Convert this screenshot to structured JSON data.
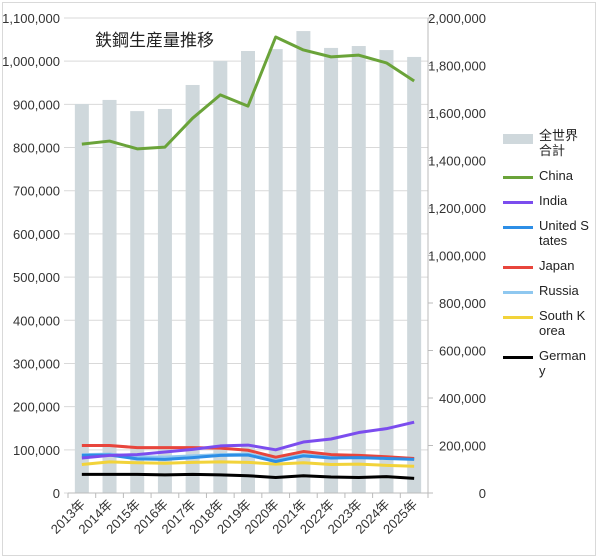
{
  "chart_data": {
    "type": "bar+line",
    "title": "鉄鋼生産量推移",
    "categories": [
      "2013年",
      "2014年",
      "2015年",
      "2016年",
      "2017年",
      "2018年",
      "2019年",
      "2020年",
      "2021年",
      "2022年",
      "2023年",
      "2024年",
      "2025年"
    ],
    "left_axis": {
      "ylim": [
        0,
        1100000
      ],
      "ticks": [
        "0",
        "100,000",
        "200,000",
        "300,000",
        "400,000",
        "500,000",
        "600,000",
        "700,000",
        "800,000",
        "900,000",
        "1,000,000",
        "1,100,000"
      ]
    },
    "right_axis": {
      "ylim": [
        0,
        2000000
      ],
      "ticks": [
        "0",
        "200,000",
        "400,000",
        "600,000",
        "800,000",
        "1,000,000",
        "1,200,000",
        "1,400,000",
        "1,600,000",
        "1,800,000",
        "2,000,000"
      ]
    },
    "grid": true,
    "legend_position": "right",
    "bar_series": {
      "name": "全世界合計",
      "axis": "right",
      "color": "#cfd8dc",
      "values": [
        1638000,
        1655000,
        1608000,
        1617000,
        1718000,
        1819000,
        1861000,
        1869000,
        1945000,
        1874000,
        1882000,
        1865000,
        1836000
      ]
    },
    "series": [
      {
        "name": "China",
        "color": "#6aa339",
        "values": [
          808000,
          815000,
          797000,
          801000,
          868000,
          922000,
          896000,
          1056000,
          1026000,
          1010000,
          1014000,
          996000,
          954000
        ]
      },
      {
        "name": "India",
        "color": "#7b4dee",
        "values": [
          81000,
          87000,
          89000,
          95000,
          101000,
          109000,
          111000,
          100000,
          118000,
          125000,
          140000,
          149000,
          164000
        ]
      },
      {
        "name": "United States",
        "color": "#2d8ee6",
        "values": [
          87000,
          88000,
          79000,
          78000,
          82000,
          87000,
          88000,
          73000,
          86000,
          81000,
          82000,
          80000,
          78000
        ]
      },
      {
        "name": "Japan",
        "color": "#e8453c",
        "values": [
          110000,
          110000,
          105000,
          105000,
          105000,
          104000,
          99000,
          83000,
          96000,
          89000,
          87000,
          84000,
          80000
        ]
      },
      {
        "name": "Russia",
        "color": "#8fc8f0",
        "values": [
          89000,
          90000,
          84000,
          83000,
          86000,
          89000,
          90000,
          78000,
          88000,
          84000,
          84000,
          82000,
          79000
        ]
      },
      {
        "name": "South Korea",
        "color": "#f2d33a",
        "values": [
          66000,
          72000,
          70000,
          69000,
          71000,
          72000,
          71000,
          67000,
          70000,
          66000,
          67000,
          64000,
          62000
        ]
      },
      {
        "name": "Germany",
        "color": "#000000",
        "values": [
          43000,
          43000,
          43000,
          42000,
          43000,
          42000,
          40000,
          36000,
          40000,
          37000,
          36000,
          38000,
          34000
        ]
      }
    ]
  },
  "legend_labels": [
    "全世界合計",
    "China",
    "India",
    "United States",
    "Japan",
    "Russia",
    "South Korea",
    "Germany"
  ]
}
